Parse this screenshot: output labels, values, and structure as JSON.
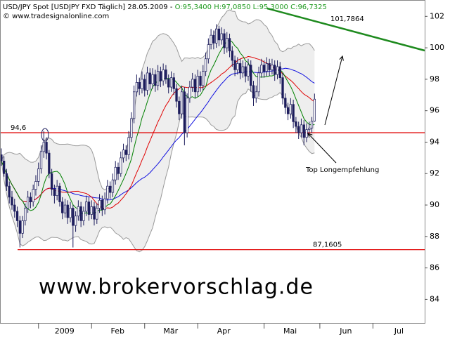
{
  "header": {
    "title": "USD/JPY Spot [USDJPY FXD  Täglich] 28.05.2009 - ",
    "ohlc": "O:95,3400 H:97,0850 L:95,3000 C:96,7325",
    "copyright": "© www.tradesignalonline.com"
  },
  "chart_data": {
    "type": "candlestick",
    "ohlc": [
      [
        93.2,
        93.6,
        92.5,
        92.8
      ],
      [
        92.8,
        93.1,
        91.8,
        92.0
      ],
      [
        92.0,
        92.3,
        90.9,
        91.2
      ],
      [
        91.2,
        91.5,
        90.1,
        90.5
      ],
      [
        90.5,
        90.9,
        89.7,
        90.0
      ],
      [
        90.0,
        90.4,
        89.2,
        89.6
      ],
      [
        89.6,
        89.9,
        88.6,
        89.0
      ],
      [
        89.0,
        89.3,
        87.3,
        88.2
      ],
      [
        88.2,
        89.3,
        87.9,
        89.0
      ],
      [
        89.0,
        90.1,
        88.7,
        89.8
      ],
      [
        89.8,
        90.9,
        89.5,
        90.5
      ],
      [
        90.5,
        90.8,
        89.8,
        90.2
      ],
      [
        90.2,
        91.3,
        89.9,
        91.0
      ],
      [
        91.0,
        91.9,
        90.6,
        91.5
      ],
      [
        91.5,
        92.7,
        91.2,
        92.3
      ],
      [
        92.3,
        93.8,
        92.0,
        93.4
      ],
      [
        93.4,
        94.7,
        93.0,
        94.0
      ],
      [
        94.0,
        94.3,
        92.9,
        93.3
      ],
      [
        93.3,
        93.5,
        91.7,
        92.0
      ],
      [
        92.0,
        92.3,
        90.6,
        91.0
      ],
      [
        91.0,
        91.3,
        90.1,
        90.6
      ],
      [
        90.6,
        91.6,
        90.3,
        91.2
      ],
      [
        91.2,
        91.4,
        89.9,
        90.2
      ],
      [
        90.2,
        90.5,
        89.1,
        89.5
      ],
      [
        89.5,
        90.4,
        89.2,
        90.0
      ],
      [
        90.0,
        90.3,
        88.8,
        89.2
      ],
      [
        89.2,
        90.2,
        88.9,
        89.8
      ],
      [
        89.8,
        90.0,
        87.3,
        88.7
      ],
      [
        88.7,
        89.6,
        88.3,
        89.3
      ],
      [
        89.3,
        90.3,
        89.0,
        89.9
      ],
      [
        89.9,
        90.2,
        88.6,
        89.0
      ],
      [
        89.0,
        89.9,
        88.7,
        89.6
      ],
      [
        89.6,
        90.6,
        89.3,
        90.2
      ],
      [
        90.2,
        90.5,
        89.0,
        89.4
      ],
      [
        89.4,
        90.3,
        89.1,
        89.9
      ],
      [
        89.9,
        90.2,
        88.7,
        89.1
      ],
      [
        89.1,
        90.1,
        88.8,
        89.8
      ],
      [
        89.8,
        90.7,
        89.5,
        90.3
      ],
      [
        90.3,
        90.6,
        89.3,
        89.7
      ],
      [
        89.7,
        90.8,
        89.4,
        90.4
      ],
      [
        90.4,
        91.6,
        90.1,
        91.2
      ],
      [
        91.2,
        91.5,
        90.4,
        90.8
      ],
      [
        90.8,
        92.0,
        90.5,
        91.6
      ],
      [
        91.6,
        92.8,
        91.3,
        92.4
      ],
      [
        92.4,
        92.7,
        91.6,
        92.0
      ],
      [
        92.0,
        93.4,
        91.8,
        93.0
      ],
      [
        93.0,
        93.9,
        92.7,
        93.5
      ],
      [
        93.5,
        93.8,
        92.8,
        93.2
      ],
      [
        93.2,
        94.7,
        92.9,
        94.3
      ],
      [
        94.3,
        95.9,
        94.0,
        95.5
      ],
      [
        95.5,
        97.6,
        95.2,
        97.2
      ],
      [
        97.2,
        98.3,
        96.9,
        97.8
      ],
      [
        97.8,
        98.1,
        97.0,
        97.4
      ],
      [
        97.4,
        98.5,
        97.1,
        98.0
      ],
      [
        98.0,
        98.3,
        96.9,
        97.3
      ],
      [
        97.3,
        98.8,
        97.0,
        98.4
      ],
      [
        98.4,
        98.7,
        97.3,
        97.7
      ],
      [
        97.7,
        98.7,
        97.4,
        98.3
      ],
      [
        98.3,
        98.6,
        97.2,
        97.6
      ],
      [
        97.6,
        98.9,
        97.3,
        98.5
      ],
      [
        98.5,
        98.8,
        97.5,
        97.9
      ],
      [
        97.9,
        99.0,
        97.6,
        98.6
      ],
      [
        98.6,
        98.9,
        97.7,
        98.0
      ],
      [
        98.0,
        98.3,
        97.1,
        97.5
      ],
      [
        97.5,
        98.5,
        97.2,
        98.1
      ],
      [
        98.1,
        98.4,
        97.0,
        97.4
      ],
      [
        97.4,
        97.7,
        96.2,
        96.6
      ],
      [
        96.6,
        96.9,
        95.4,
        95.8
      ],
      [
        95.8,
        97.6,
        95.5,
        97.2
      ],
      [
        97.2,
        97.5,
        93.8,
        94.6
      ],
      [
        94.6,
        97.1,
        94.3,
        96.8
      ],
      [
        96.8,
        97.9,
        96.5,
        97.5
      ],
      [
        97.5,
        98.4,
        97.2,
        98.0
      ],
      [
        98.0,
        98.3,
        96.8,
        97.2
      ],
      [
        97.2,
        98.6,
        96.9,
        98.2
      ],
      [
        98.2,
        98.5,
        97.2,
        97.6
      ],
      [
        97.6,
        98.9,
        97.3,
        98.5
      ],
      [
        98.5,
        99.7,
        98.2,
        99.3
      ],
      [
        99.3,
        100.6,
        99.0,
        100.2
      ],
      [
        100.2,
        101.2,
        99.9,
        100.8
      ],
      [
        100.8,
        101.1,
        99.9,
        100.3
      ],
      [
        100.3,
        101.5,
        100.0,
        101.2
      ],
      [
        101.2,
        101.4,
        100.1,
        100.5
      ],
      [
        100.5,
        101.3,
        100.2,
        100.9
      ],
      [
        100.9,
        101.2,
        99.6,
        100.0
      ],
      [
        100.0,
        101.0,
        99.7,
        100.6
      ],
      [
        100.6,
        100.9,
        99.4,
        99.8
      ],
      [
        99.8,
        100.1,
        98.8,
        99.2
      ],
      [
        99.2,
        99.5,
        98.2,
        98.6
      ],
      [
        98.6,
        99.4,
        98.3,
        99.0
      ],
      [
        99.0,
        99.3,
        98.0,
        98.4
      ],
      [
        98.4,
        99.2,
        98.1,
        98.8
      ],
      [
        98.8,
        99.1,
        97.8,
        98.2
      ],
      [
        98.2,
        99.3,
        97.9,
        98.9
      ],
      [
        98.9,
        99.2,
        97.2,
        97.6
      ],
      [
        97.6,
        97.9,
        96.3,
        96.8
      ],
      [
        96.8,
        97.6,
        96.5,
        97.2
      ],
      [
        97.2,
        98.8,
        96.9,
        98.4
      ],
      [
        98.4,
        99.3,
        98.1,
        98.9
      ],
      [
        98.9,
        99.2,
        98.1,
        98.5
      ],
      [
        98.5,
        99.4,
        98.2,
        99.0
      ],
      [
        99.0,
        99.3,
        98.2,
        98.6
      ],
      [
        98.6,
        99.3,
        98.3,
        98.9
      ],
      [
        98.9,
        99.2,
        97.9,
        98.3
      ],
      [
        98.3,
        99.2,
        98.0,
        98.8
      ],
      [
        98.8,
        99.1,
        97.7,
        98.1
      ],
      [
        98.1,
        98.4,
        96.4,
        96.8
      ],
      [
        96.8,
        97.1,
        95.8,
        96.2
      ],
      [
        96.2,
        96.5,
        95.4,
        95.8
      ],
      [
        95.8,
        96.8,
        95.5,
        96.4
      ],
      [
        96.4,
        96.7,
        94.9,
        95.3
      ],
      [
        95.3,
        95.6,
        94.6,
        95.0
      ],
      [
        95.0,
        95.3,
        94.2,
        94.6
      ],
      [
        94.6,
        95.5,
        94.3,
        95.1
      ],
      [
        95.1,
        95.4,
        93.8,
        94.3
      ],
      [
        94.3,
        95.2,
        94.0,
        94.8
      ],
      [
        94.8,
        95.3,
        94.4,
        94.9
      ],
      [
        94.9,
        95.6,
        94.6,
        95.34
      ],
      [
        95.34,
        97.085,
        95.3,
        96.7325
      ]
    ],
    "up_color": "#ffffff",
    "down_color": "#1c1c5c",
    "outline_color": "#1c1c5c",
    "indicators": [
      {
        "kind": "bollinger",
        "period": 20,
        "width": 2,
        "color": "#9a9a9a",
        "fill": "#eeeeee"
      },
      {
        "kind": "sma",
        "period": 38,
        "color": "#1010e0"
      },
      {
        "kind": "sma",
        "period": 20,
        "color": "#e00000"
      },
      {
        "kind": "sma",
        "period": 9,
        "color": "#008000"
      }
    ],
    "ylim": [
      82.5,
      103.04
    ],
    "yticks": [
      84,
      86,
      88,
      90,
      92,
      94,
      96,
      98,
      100,
      102
    ],
    "xlim": [
      -0.5,
      159.5
    ],
    "xticks": [
      {
        "value": 14,
        "label": "2009"
      },
      {
        "value": 34,
        "label": "Feb"
      },
      {
        "value": 54,
        "label": "Mär"
      },
      {
        "value": 74,
        "label": "Apr"
      },
      {
        "value": 99,
        "label": "Mai"
      },
      {
        "value": 120,
        "label": "Jun"
      },
      {
        "value": 140,
        "label": "Jul"
      }
    ],
    "levels": [
      {
        "value": 94.6,
        "label": "94,6",
        "color": "#e00000"
      },
      {
        "value": 87.1605,
        "label": "87,1605",
        "color": "#e00000"
      }
    ],
    "trendline_label": "101,7864",
    "annotation": "Top Longempfehlung",
    "watermark": "www.brokervorschlag.de"
  }
}
